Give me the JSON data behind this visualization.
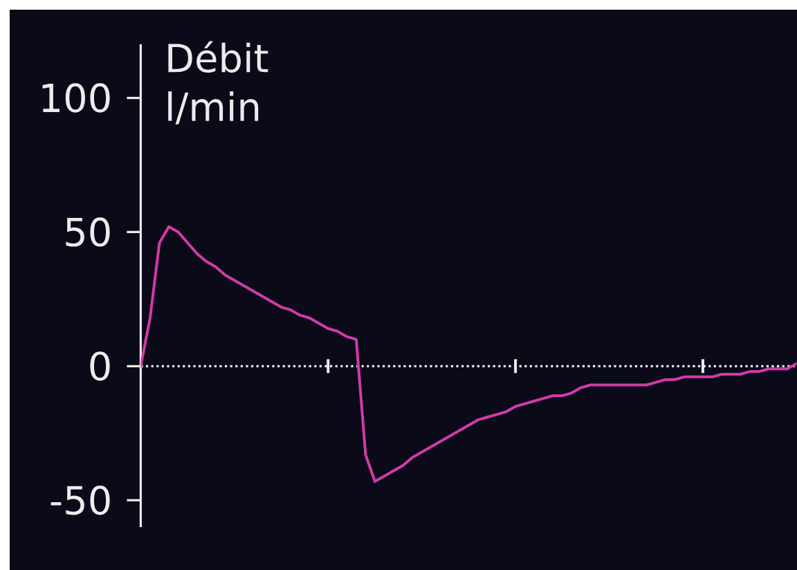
{
  "chart_data": {
    "type": "line",
    "title": "Débit",
    "ylabel": "l/min",
    "categories": [
      null,
      null,
      null,
      null,
      null,
      null,
      null,
      null,
      null,
      null,
      null,
      null,
      null,
      null,
      null,
      null,
      null,
      null,
      null,
      null,
      null,
      null,
      null,
      null,
      null,
      null,
      null,
      null,
      null,
      null,
      null,
      null,
      null,
      null,
      null,
      null,
      null,
      null,
      null,
      null,
      null,
      null,
      null,
      null,
      null,
      null,
      null,
      null,
      null,
      null,
      null,
      null,
      null,
      null,
      null,
      null,
      null,
      null,
      null,
      null,
      null,
      null,
      null,
      null,
      null,
      null,
      null,
      null,
      null,
      null,
      null
    ],
    "values": [
      0,
      18,
      46,
      52,
      50,
      46,
      42,
      39,
      37,
      34,
      32,
      30,
      28,
      26,
      24,
      22,
      21,
      19,
      18,
      16,
      14,
      13,
      11,
      10,
      -33,
      -43,
      -41,
      -39,
      -37,
      -34,
      -32,
      -30,
      -28,
      -26,
      -24,
      -22,
      -20,
      -19,
      -18,
      -17,
      -15,
      -14,
      -13,
      -12,
      -11,
      -11,
      -10,
      -8,
      -7,
      -7,
      -7,
      -7,
      -7,
      -7,
      -7,
      -6,
      -5,
      -5,
      -4,
      -4,
      -4,
      -4,
      -3,
      -3,
      -3,
      -2,
      -2,
      -1,
      -1,
      -1,
      1
    ],
    "color": "#d23aa8",
    "ylim": [
      -60,
      120
    ],
    "yticks": [
      -50,
      0,
      50,
      100
    ],
    "tick_labels": "y",
    "marker": "none",
    "line_style": "solid"
  }
}
